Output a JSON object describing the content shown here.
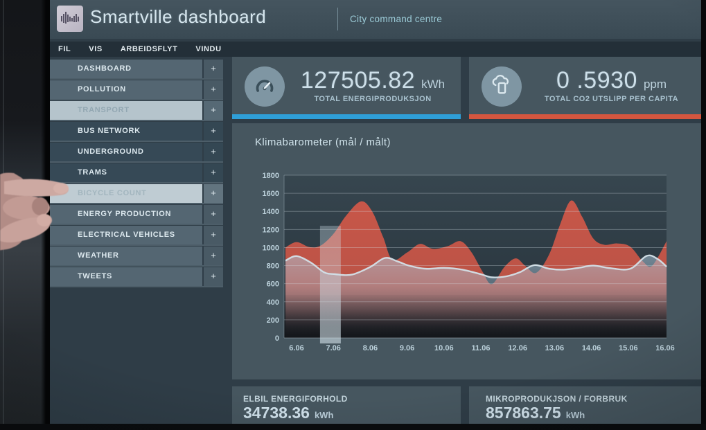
{
  "header": {
    "title": "Smartville dashboard",
    "subtitle": "City command centre",
    "logo": "soundwave-logo"
  },
  "menubar": {
    "items": [
      "FIL",
      "VIS",
      "ARBEIDSFLYT",
      "VINDU"
    ]
  },
  "sidebar": {
    "expand_glyph": "+",
    "items": [
      {
        "label": "DASHBOARD",
        "level": "top",
        "state": "normal"
      },
      {
        "label": "POLLUTION",
        "level": "top",
        "state": "normal"
      },
      {
        "label": "TRANSPORT",
        "level": "top",
        "state": "selected"
      },
      {
        "label": "BUS NETWORK",
        "level": "sub",
        "state": "normal"
      },
      {
        "label": "UNDERGROUND",
        "level": "sub",
        "state": "normal"
      },
      {
        "label": "TRAMS",
        "level": "sub",
        "state": "normal"
      },
      {
        "label": "BICYCLE COUNT",
        "level": "sub",
        "state": "pressed"
      },
      {
        "label": "ENERGY PRODUCTION",
        "level": "top",
        "state": "normal"
      },
      {
        "label": "ELECTRICAL VEHICLES",
        "level": "top",
        "state": "normal"
      },
      {
        "label": "WEATHER",
        "level": "top",
        "state": "normal"
      },
      {
        "label": "TWEETS",
        "level": "top",
        "state": "normal"
      }
    ]
  },
  "kpis": [
    {
      "value": "127505.82",
      "unit": "kWh",
      "label": "TOTAL ENERGIPRODUKSJON",
      "accent": "#2f9fd8",
      "icon": "gauge-icon"
    },
    {
      "value": "0 .5930",
      "unit": "ppm",
      "label": "TOTAL CO2 UTSLIPP PER CAPITA",
      "accent": "#d4563f",
      "icon": "co2-cloud-icon"
    }
  ],
  "chart_data": {
    "type": "area",
    "title": "Klimabarometer (mål / målt)",
    "x_tick_labels": [
      "6.06",
      "7.06",
      "8.06",
      "9.06",
      "10.06",
      "11.06",
      "12.06",
      "13.06",
      "14.06",
      "15.06",
      "16.06"
    ],
    "ylim": [
      0,
      1800
    ],
    "y_tick_step": 200,
    "grid": "horizontal",
    "legend_position": "none",
    "series": [
      {
        "name": "målt",
        "role": "measured",
        "style": "area",
        "color": "#c85a49",
        "points": [
          [
            -0.3,
            1000
          ],
          [
            0,
            1060
          ],
          [
            0.35,
            1005
          ],
          [
            0.65,
            1020
          ],
          [
            1,
            1150
          ],
          [
            1.35,
            1355
          ],
          [
            1.75,
            1510
          ],
          [
            2.05,
            1400
          ],
          [
            2.35,
            1115
          ],
          [
            2.6,
            865
          ],
          [
            3,
            945
          ],
          [
            3.35,
            1040
          ],
          [
            3.7,
            985
          ],
          [
            4.1,
            1015
          ],
          [
            4.45,
            1070
          ],
          [
            4.75,
            945
          ],
          [
            5.05,
            730
          ],
          [
            5.3,
            595
          ],
          [
            5.65,
            790
          ],
          [
            5.95,
            880
          ],
          [
            6.2,
            800
          ],
          [
            6.5,
            720
          ],
          [
            6.85,
            920
          ],
          [
            7.15,
            1255
          ],
          [
            7.45,
            1520
          ],
          [
            7.75,
            1340
          ],
          [
            8.05,
            1100
          ],
          [
            8.35,
            1030
          ],
          [
            8.7,
            1045
          ],
          [
            9.05,
            1010
          ],
          [
            9.4,
            845
          ],
          [
            9.65,
            800
          ],
          [
            10.04,
            1070
          ]
        ],
        "values_at_ticks": [
          1060,
          1150,
          1420,
          945,
          1015,
          730,
          860,
          1080,
          1110,
          1010,
          1070
        ]
      },
      {
        "name": "mål",
        "role": "target",
        "style": "line-area",
        "color": "#d3e0e8",
        "fill": "#aecbde",
        "points": [
          [
            -0.3,
            855
          ],
          [
            0,
            905
          ],
          [
            0.4,
            830
          ],
          [
            0.75,
            725
          ],
          [
            1.05,
            705
          ],
          [
            1.5,
            700
          ],
          [
            2,
            785
          ],
          [
            2.4,
            885
          ],
          [
            2.75,
            845
          ],
          [
            3.05,
            800
          ],
          [
            3.5,
            765
          ],
          [
            4,
            775
          ],
          [
            4.5,
            755
          ],
          [
            5,
            705
          ],
          [
            5.3,
            670
          ],
          [
            5.7,
            682
          ],
          [
            6.05,
            725
          ],
          [
            6.45,
            805
          ],
          [
            6.85,
            765
          ],
          [
            7.25,
            755
          ],
          [
            7.65,
            775
          ],
          [
            8.05,
            800
          ],
          [
            8.5,
            772
          ],
          [
            9.05,
            765
          ],
          [
            9.5,
            908
          ],
          [
            9.8,
            872
          ],
          [
            10.04,
            788
          ]
        ],
        "values_at_ticks": [
          905,
          705,
          785,
          800,
          775,
          705,
          725,
          760,
          800,
          765,
          790
        ]
      }
    ],
    "highlight_bar": {
      "near_tick": "7.06",
      "day_offset": 0.92,
      "top_value": 1240,
      "color": "#cfe0ea"
    }
  },
  "bottom_cards": [
    {
      "label": "ELBIL ENERGIFORHOLD",
      "value": "34738.36",
      "unit": "kWh"
    },
    {
      "label": "MIKROPRODUKJSON / FORBRUK",
      "value": "857863.75",
      "unit": "kWh"
    }
  ]
}
